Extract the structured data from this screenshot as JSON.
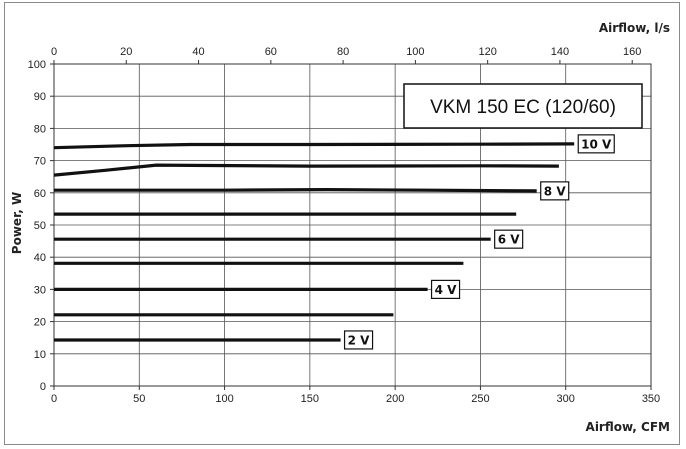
{
  "chart_data": {
    "type": "line",
    "title": "VKM 150 EC (120/60)",
    "xlabel": "Airflow, CFM",
    "x2label": "Airflow, l/s",
    "ylabel": "Power, W",
    "xlim": [
      0,
      350
    ],
    "x2lim": [
      0,
      165.2
    ],
    "ylim": [
      0,
      100
    ],
    "xticks": [
      "0",
      "50",
      "100",
      "150",
      "200",
      "250",
      "300",
      "350"
    ],
    "x2ticks": [
      "0",
      "20",
      "40",
      "60",
      "80",
      "100",
      "120",
      "140",
      "160"
    ],
    "yticks": [
      "0",
      "10",
      "20",
      "30",
      "40",
      "50",
      "60",
      "70",
      "80",
      "90",
      "100"
    ],
    "grid": true,
    "line_color": "#111111",
    "series": [
      {
        "name": "10 V",
        "points": [
          [
            0,
            74
          ],
          [
            40,
            74.6
          ],
          [
            80,
            75
          ],
          [
            150,
            75
          ],
          [
            250,
            75.1
          ],
          [
            305,
            75.2
          ]
        ]
      },
      {
        "points": [
          [
            0,
            65.5
          ],
          [
            30,
            67
          ],
          [
            60,
            68.6
          ],
          [
            80,
            68.5
          ],
          [
            150,
            68.3
          ],
          [
            250,
            68.4
          ],
          [
            296,
            68.3
          ]
        ]
      },
      {
        "name": "8 V",
        "points": [
          [
            0,
            60.8
          ],
          [
            100,
            60.8
          ],
          [
            160,
            61
          ],
          [
            220,
            60.8
          ],
          [
            283,
            60.6
          ]
        ]
      },
      {
        "points": [
          [
            0,
            53.4
          ],
          [
            271,
            53.4
          ]
        ]
      },
      {
        "name": "6 V",
        "points": [
          [
            0,
            45.6
          ],
          [
            256,
            45.6
          ]
        ]
      },
      {
        "points": [
          [
            0,
            38.1
          ],
          [
            240,
            38.1
          ]
        ]
      },
      {
        "name": "4 V",
        "points": [
          [
            0,
            30
          ],
          [
            219,
            30
          ]
        ]
      },
      {
        "points": [
          [
            0,
            22.1
          ],
          [
            199,
            22.1
          ]
        ]
      },
      {
        "name": "2 V",
        "points": [
          [
            0,
            14.3
          ],
          [
            168,
            14.3
          ]
        ]
      }
    ]
  }
}
